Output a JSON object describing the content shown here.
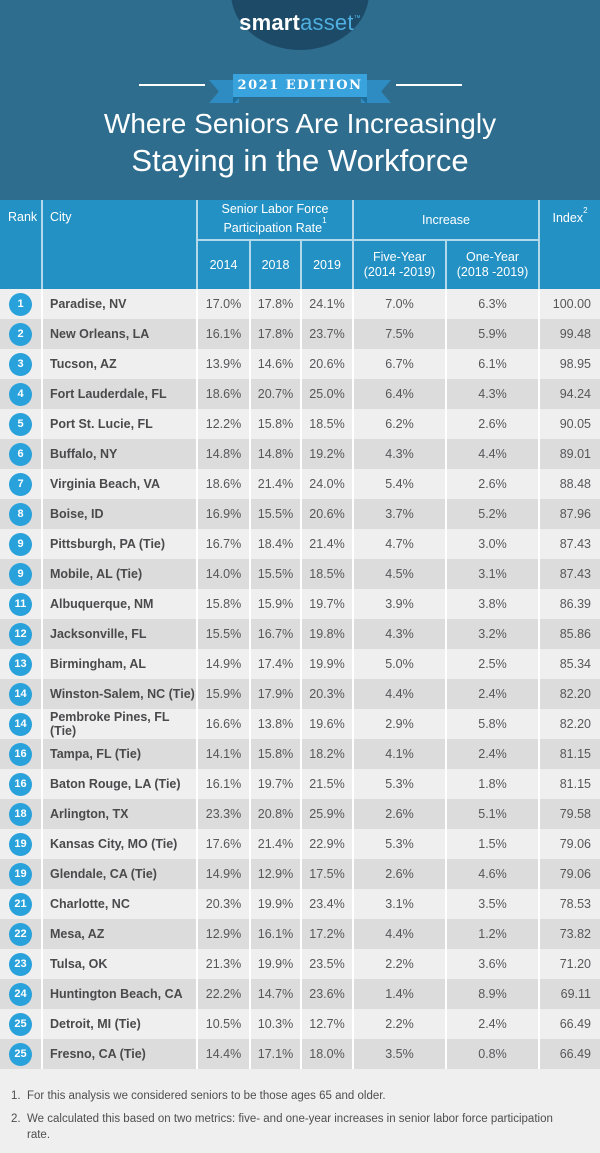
{
  "logo": {
    "smart": "smart",
    "asset": "asset",
    "tm": "™"
  },
  "banner": {
    "label": "2021 EDITION"
  },
  "title": {
    "line1": "Where Seniors Are Increasingly",
    "line2": "Staying in the Workforce"
  },
  "table": {
    "headers": {
      "rank": "Rank",
      "city": "City",
      "group1_line1": "Senior Labor Force",
      "group1_line2": "Participation Rate",
      "group1_sup": "1",
      "group2": "Increase",
      "years": [
        "2014",
        "2018",
        "2019"
      ],
      "five_label": "Five-Year",
      "five_range": "(2014 -2019)",
      "one_label": "One-Year",
      "one_range": "(2018 -2019)",
      "index": "Index",
      "index_sup": "2"
    }
  },
  "chart_data": {
    "type": "table",
    "title": "Where Seniors Are Increasingly Staying in the Workforce",
    "subtitle": "2021 EDITION",
    "columns": [
      "Rank",
      "City",
      "2014",
      "2018",
      "2019",
      "Five-Year (2014 -2019)",
      "One-Year (2018 -2019)",
      "Index"
    ],
    "rows": [
      [
        "1",
        "Paradise, NV",
        "17.0%",
        "17.8%",
        "24.1%",
        "7.0%",
        "6.3%",
        "100.00"
      ],
      [
        "2",
        "New Orleans, LA",
        "16.1%",
        "17.8%",
        "23.7%",
        "7.5%",
        "5.9%",
        "99.48"
      ],
      [
        "3",
        "Tucson, AZ",
        "13.9%",
        "14.6%",
        "20.6%",
        "6.7%",
        "6.1%",
        "98.95"
      ],
      [
        "4",
        "Fort Lauderdale, FL",
        "18.6%",
        "20.7%",
        "25.0%",
        "6.4%",
        "4.3%",
        "94.24"
      ],
      [
        "5",
        "Port St. Lucie, FL",
        "12.2%",
        "15.8%",
        "18.5%",
        "6.2%",
        "2.6%",
        "90.05"
      ],
      [
        "6",
        "Buffalo, NY",
        "14.8%",
        "14.8%",
        "19.2%",
        "4.3%",
        "4.4%",
        "89.01"
      ],
      [
        "7",
        "Virginia Beach, VA",
        "18.6%",
        "21.4%",
        "24.0%",
        "5.4%",
        "2.6%",
        "88.48"
      ],
      [
        "8",
        "Boise, ID",
        "16.9%",
        "15.5%",
        "20.6%",
        "3.7%",
        "5.2%",
        "87.96"
      ],
      [
        "9",
        "Pittsburgh, PA (Tie)",
        "16.7%",
        "18.4%",
        "21.4%",
        "4.7%",
        "3.0%",
        "87.43"
      ],
      [
        "9",
        "Mobile, AL (Tie)",
        "14.0%",
        "15.5%",
        "18.5%",
        "4.5%",
        "3.1%",
        "87.43"
      ],
      [
        "11",
        "Albuquerque, NM",
        "15.8%",
        "15.9%",
        "19.7%",
        "3.9%",
        "3.8%",
        "86.39"
      ],
      [
        "12",
        "Jacksonville, FL",
        "15.5%",
        "16.7%",
        "19.8%",
        "4.3%",
        "3.2%",
        "85.86"
      ],
      [
        "13",
        "Birmingham, AL",
        "14.9%",
        "17.4%",
        "19.9%",
        "5.0%",
        "2.5%",
        "85.34"
      ],
      [
        "14",
        "Winston-Salem, NC (Tie)",
        "15.9%",
        "17.9%",
        "20.3%",
        "4.4%",
        "2.4%",
        "82.20"
      ],
      [
        "14",
        "Pembroke Pines, FL (Tie)",
        "16.6%",
        "13.8%",
        "19.6%",
        "2.9%",
        "5.8%",
        "82.20"
      ],
      [
        "16",
        "Tampa, FL (Tie)",
        "14.1%",
        "15.8%",
        "18.2%",
        "4.1%",
        "2.4%",
        "81.15"
      ],
      [
        "16",
        "Baton Rouge, LA (Tie)",
        "16.1%",
        "19.7%",
        "21.5%",
        "5.3%",
        "1.8%",
        "81.15"
      ],
      [
        "18",
        "Arlington, TX",
        "23.3%",
        "20.8%",
        "25.9%",
        "2.6%",
        "5.1%",
        "79.58"
      ],
      [
        "19",
        "Kansas City, MO (Tie)",
        "17.6%",
        "21.4%",
        "22.9%",
        "5.3%",
        "1.5%",
        "79.06"
      ],
      [
        "19",
        "Glendale, CA (Tie)",
        "14.9%",
        "12.9%",
        "17.5%",
        "2.6%",
        "4.6%",
        "79.06"
      ],
      [
        "21",
        "Charlotte, NC",
        "20.3%",
        "19.9%",
        "23.4%",
        "3.1%",
        "3.5%",
        "78.53"
      ],
      [
        "22",
        "Mesa, AZ",
        "12.9%",
        "16.1%",
        "17.2%",
        "4.4%",
        "1.2%",
        "73.82"
      ],
      [
        "23",
        "Tulsa, OK",
        "21.3%",
        "19.9%",
        "23.5%",
        "2.2%",
        "3.6%",
        "71.20"
      ],
      [
        "24",
        "Huntington Beach, CA",
        "22.2%",
        "14.7%",
        "23.6%",
        "1.4%",
        "8.9%",
        "69.11"
      ],
      [
        "25",
        "Detroit, MI (Tie)",
        "10.5%",
        "10.3%",
        "12.7%",
        "2.2%",
        "2.4%",
        "66.49"
      ],
      [
        "25",
        "Fresno, CA (Tie)",
        "14.4%",
        "17.1%",
        "18.0%",
        "3.5%",
        "0.8%",
        "66.49"
      ]
    ]
  },
  "footnotes": [
    {
      "num": "1.",
      "text": "For this analysis we considered seniors to be those ages 65 and older."
    },
    {
      "num": "2.",
      "text": "We calculated this based on two metrics: five- and one-year increases in senior labor force participation rate."
    }
  ],
  "colors": {
    "hero_background": "#2E6D8E",
    "logo_oval": "#1C4A67",
    "logo_asset_blue": "#4FAFE0",
    "ribbon_blue": "#38A3DD",
    "ribbon_tail": "#2E8CC2",
    "ribbon_fold": "#1E6E9C",
    "header_blue": "#2391C4",
    "rank_circle_blue": "#29A1DB",
    "row_light": "#EFEFEF",
    "row_dark": "#DCDCDC",
    "body_text": "#57575A",
    "city_text": "#4A4A4C",
    "white": "#FFFFFF"
  }
}
